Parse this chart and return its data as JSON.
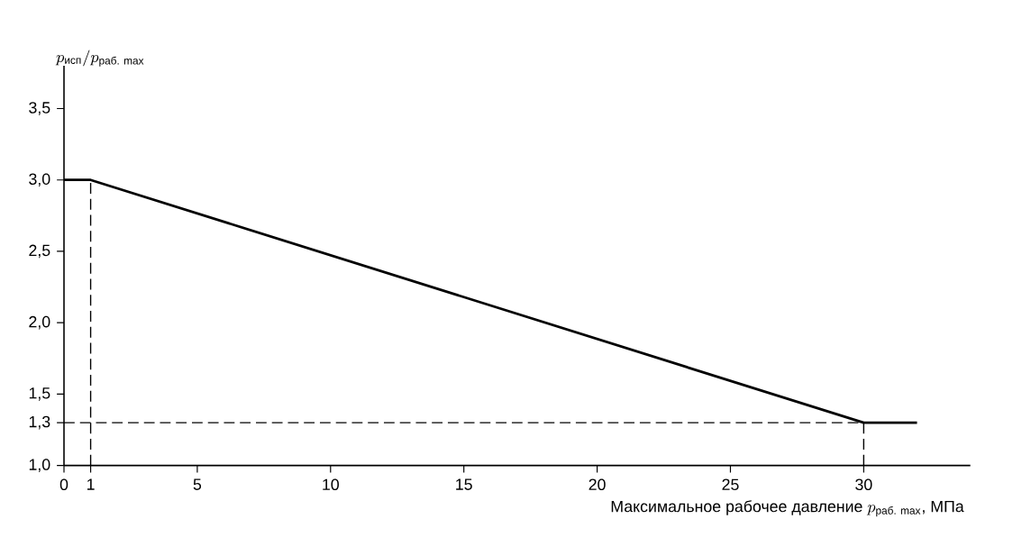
{
  "chart_data": {
    "type": "line",
    "ylabel": "p_{\\text{исп}}/p_{\\text{раб. max}}",
    "xlabel": "\\text{Максимальное рабочее давление }p_{\\text{раб. max}}\\text{, МПа}",
    "xlim": [
      0,
      34
    ],
    "ylim": [
      1.0,
      3.8
    ],
    "xticks": [
      0,
      1,
      5,
      10,
      15,
      20,
      25,
      30
    ],
    "yticks": [
      {
        "value": 1.0,
        "label": "1,0"
      },
      {
        "value": 1.3,
        "label": "1,3"
      },
      {
        "value": 1.5,
        "label": "1,5"
      },
      {
        "value": 2.0,
        "label": "2,0"
      },
      {
        "value": 2.5,
        "label": "2,5"
      },
      {
        "value": 3.0,
        "label": "3,0"
      },
      {
        "value": 3.5,
        "label": "3,5"
      }
    ],
    "grid": false,
    "marker": "none",
    "series": [
      {
        "color": "#000000",
        "line_style": "solid",
        "x": [
          0,
          1,
          30,
          32
        ],
        "values": [
          3.0,
          3.0,
          1.3,
          1.3
        ]
      },
      {
        "color": "#000000",
        "line_style": "dashed",
        "x": [
          1,
          1
        ],
        "values": [
          1.0,
          3.0
        ]
      },
      {
        "color": "#000000",
        "line_style": "dashed",
        "x": [
          0,
          30
        ],
        "values": [
          1.3,
          1.3
        ]
      },
      {
        "color": "#000000",
        "line_style": "dashed",
        "x": [
          30,
          30
        ],
        "values": [
          1.0,
          1.3
        ]
      }
    ]
  }
}
